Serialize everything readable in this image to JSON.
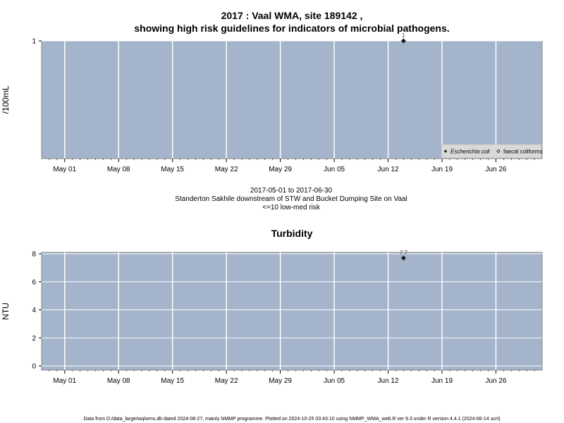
{
  "header": {
    "title_line1": "2017 : Vaal WMA, site 189142 ,",
    "title_line2": "showing high risk guidelines for indicators of microbial pathogens."
  },
  "subtitle": {
    "line1": "2017-05-01 to 2017-06-30",
    "line2": "Standerton Sakhile downstream of STW and Bucket Dumping Site on Vaal",
    "line3": "<=10 low-med risk"
  },
  "footer": {
    "text": "Data from D:/data_large/wq/wms.db dated 2024-08-27, mainly NMMP programme. Plotted on 2024-10-25 03:43:10 using NMMP_WMA_web.R ver 9.3 under R version 4.4.1 (2024-06-14 ucrt)"
  },
  "colors": {
    "panel_bg": "#a3b4cb",
    "grid": "#ffffff",
    "point": "#1a1a1a",
    "axis": "#000000"
  },
  "chart_data": [
    {
      "type": "scatter",
      "title": "",
      "ylabel": "/100mL",
      "xlabel": "",
      "x_tick_labels": [
        "May 01",
        "May 08",
        "May 15",
        "May 22",
        "May 29",
        "Jun 05",
        "Jun 12",
        "Jun 19",
        "Jun 26"
      ],
      "x_tick_dates": [
        "2017-05-01",
        "2017-05-08",
        "2017-05-15",
        "2017-05-22",
        "2017-05-29",
        "2017-06-05",
        "2017-06-12",
        "2017-06-19",
        "2017-06-26"
      ],
      "xlim": [
        "2017-04-28",
        "2017-07-02"
      ],
      "y_ticks": [
        1
      ],
      "ylim": [
        0,
        1
      ],
      "grid": true,
      "legend_position": "bottom-right",
      "legend": [
        {
          "label": "Escherichia coli",
          "marker": "filled-diamond"
        },
        {
          "label": "faecal coliforms",
          "marker": "open-diamond"
        }
      ],
      "series": [
        {
          "name": "Escherichia coli",
          "points": [
            {
              "x": "2017-06-14",
              "y": 1,
              "label": "1"
            }
          ]
        }
      ]
    },
    {
      "type": "scatter",
      "title": "Turbidity",
      "ylabel": "NTU",
      "xlabel": "",
      "x_tick_labels": [
        "May 01",
        "May 08",
        "May 15",
        "May 22",
        "May 29",
        "Jun 05",
        "Jun 12",
        "Jun 19",
        "Jun 26"
      ],
      "x_tick_dates": [
        "2017-05-01",
        "2017-05-08",
        "2017-05-15",
        "2017-05-22",
        "2017-05-29",
        "2017-06-05",
        "2017-06-12",
        "2017-06-19",
        "2017-06-26"
      ],
      "xlim": [
        "2017-04-28",
        "2017-07-02"
      ],
      "y_ticks": [
        0,
        2,
        4,
        6,
        8
      ],
      "ylim": [
        -0.3,
        8.1
      ],
      "grid": true,
      "series": [
        {
          "name": "",
          "points": [
            {
              "x": "2017-06-14",
              "y": 7.7,
              "label": "7.7"
            }
          ]
        }
      ]
    }
  ]
}
